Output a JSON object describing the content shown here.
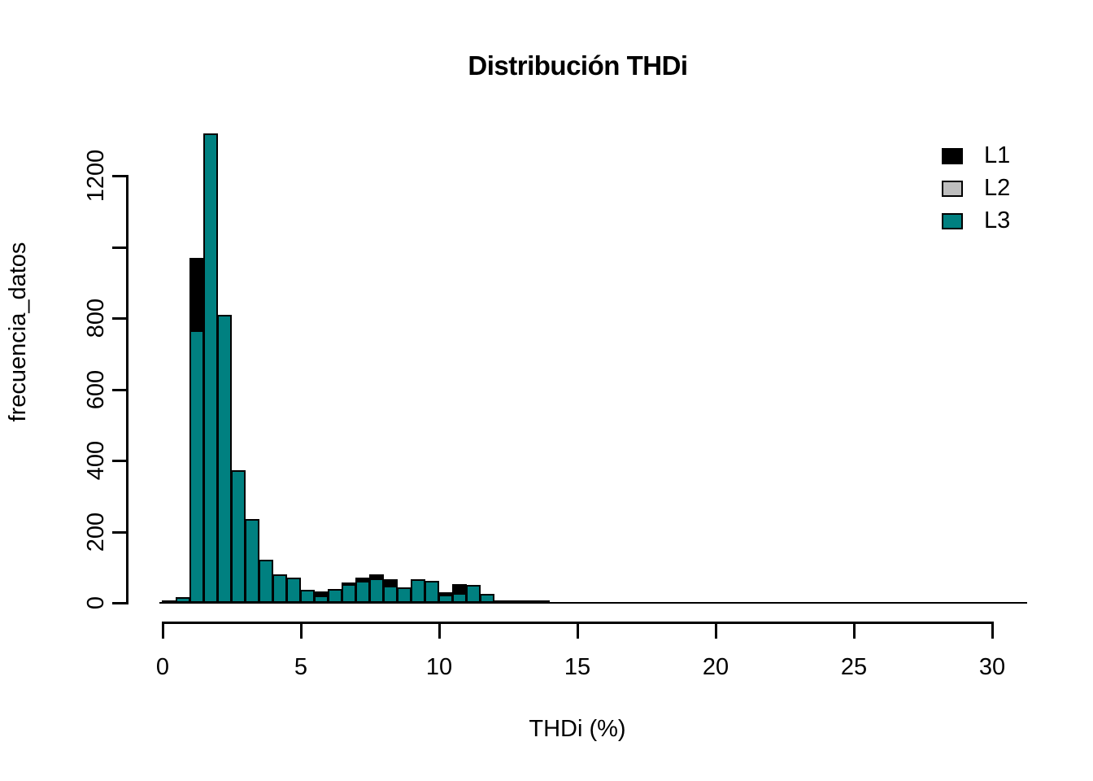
{
  "title": "Distribución THDi",
  "axes": {
    "x": {
      "label": "THDi (%)",
      "ticks": [
        0,
        5,
        10,
        15,
        20,
        25,
        30
      ],
      "range": [
        0,
        31.3
      ]
    },
    "y": {
      "label": "frecuencia_datos",
      "ticks": [
        0,
        200,
        400,
        600,
        800,
        1000,
        1200
      ],
      "tick_labels": [
        "0",
        "200",
        "400",
        "600",
        "800",
        "",
        "1200"
      ],
      "range": [
        0,
        1320
      ]
    }
  },
  "legend": {
    "position": "top-right",
    "items": [
      {
        "label": "L1",
        "color": "#000000"
      },
      {
        "label": "L2",
        "color": "#BEBEBE"
      },
      {
        "label": "L3",
        "color": "#008080"
      }
    ]
  },
  "chart_data": {
    "type": "bar",
    "subtype": "overlaid-histograms",
    "title": "Distribución THDi",
    "xlabel": "THDi (%)",
    "ylabel": "frecuencia_datos",
    "xlim": [
      0,
      31.3
    ],
    "ylim": [
      0,
      1320
    ],
    "grid": false,
    "legend_position": "top-right",
    "bin_width": 0.5,
    "bin_starts": [
      0,
      0.5,
      1,
      1.5,
      2,
      2.5,
      3,
      3.5,
      4,
      4.5,
      5,
      5.5,
      6,
      6.5,
      7,
      7.5,
      8,
      8.5,
      9,
      9.5,
      10,
      10.5,
      11,
      11.5,
      12,
      12.5,
      13,
      13.5
    ],
    "series": [
      {
        "name": "L1",
        "color": "#000000",
        "draw_order": 1,
        "note": "black histogram drawn first; 0 means not visible (covered by L3)",
        "values": [
          8,
          10,
          970,
          0,
          0,
          0,
          0,
          0,
          0,
          0,
          0,
          33,
          0,
          58,
          70,
          81,
          67,
          0,
          0,
          0,
          30,
          52,
          0,
          0,
          0,
          0,
          4,
          3
        ]
      },
      {
        "name": "L2",
        "color": "#BEBEBE",
        "draw_order": 2,
        "note": "completely hidden behind L3 bars; no gray visible in plot",
        "values": []
      },
      {
        "name": "L3",
        "color": "#008080",
        "draw_order": 3,
        "values": [
          3,
          15,
          765,
          1320,
          810,
          372,
          235,
          121,
          80,
          71,
          37,
          20,
          38,
          52,
          62,
          69,
          48,
          43,
          66,
          61,
          24,
          27,
          50,
          25,
          8,
          5,
          2,
          2
        ]
      }
    ],
    "baseline_extends_to_x": 31.3
  }
}
